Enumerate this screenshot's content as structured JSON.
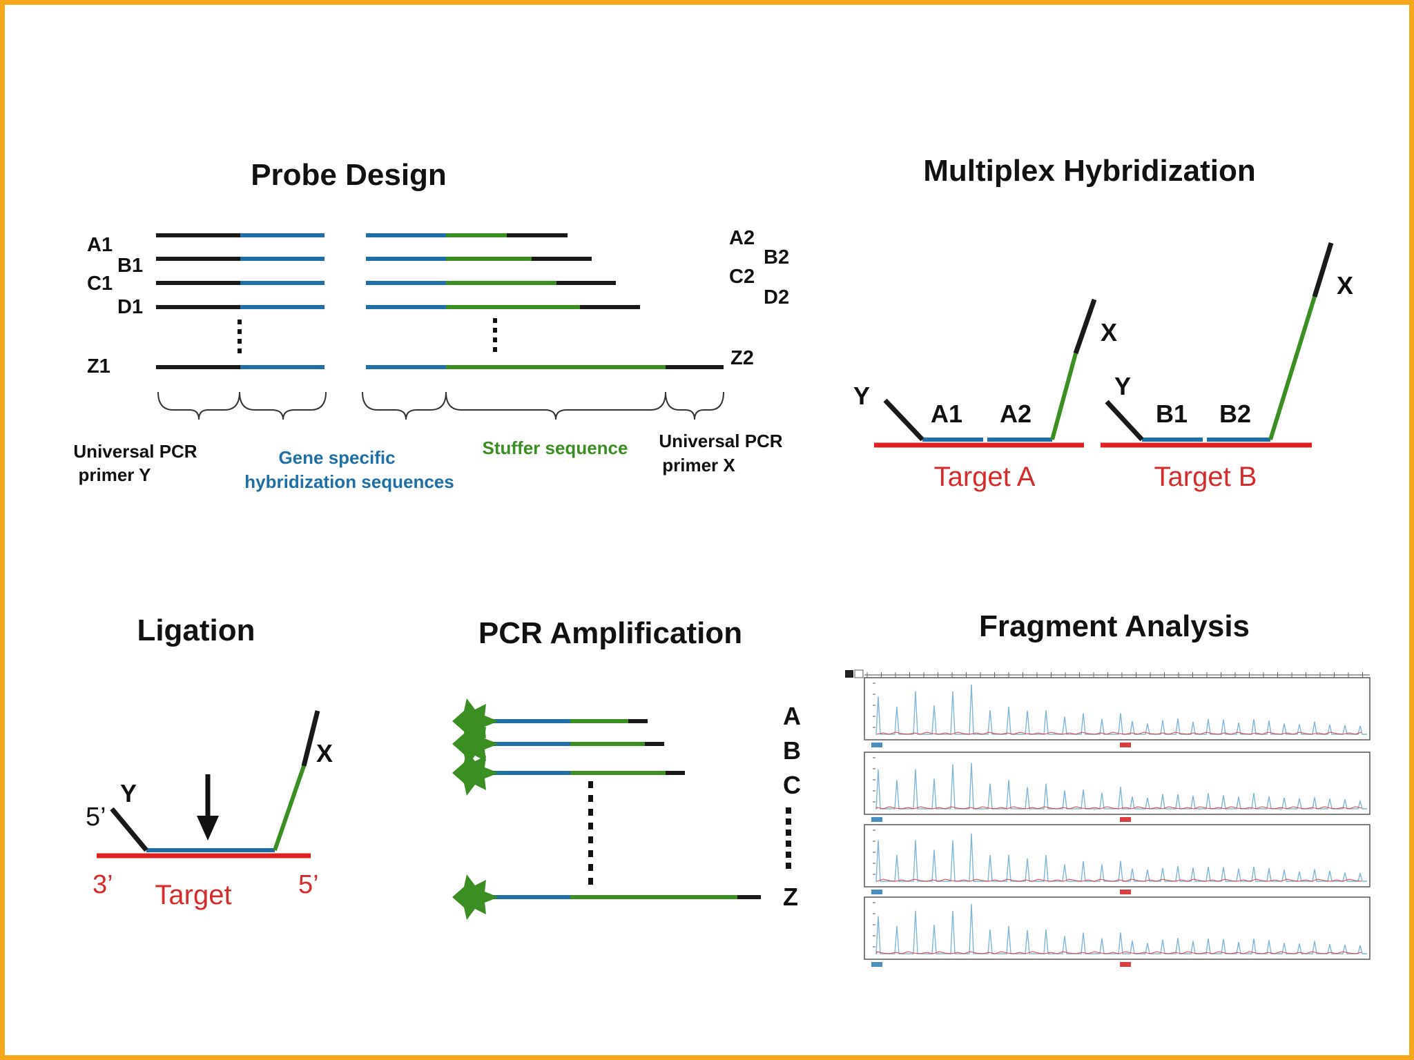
{
  "colors": {
    "frame": "#f5a81c",
    "black": "#1a1a1a",
    "blue": "#1d6fa5",
    "green": "#3b8f22",
    "red": "#e02020",
    "trace_blue": "#7fb6d6",
    "trace_red": "#d84040"
  },
  "probe_design": {
    "title": "Probe Design",
    "left_labels": [
      "A1",
      "B1",
      "C1",
      "D1",
      "Z1"
    ],
    "right_labels": [
      "A2",
      "B2",
      "C2",
      "D2",
      "Z2"
    ],
    "captions": {
      "primer_y": [
        "Universal PCR",
        "primer  Y"
      ],
      "gene_specific": [
        "Gene specific",
        "hybridization sequences"
      ],
      "stuffer": "Stuffer sequence",
      "primer_x": [
        "Universal PCR",
        "primer X"
      ]
    }
  },
  "multiplex": {
    "title": "Multiplex Hybridization",
    "labels": {
      "y": "Y",
      "x": "X",
      "a1": "A1",
      "a2": "A2",
      "b1": "B1",
      "b2": "B2"
    },
    "target_a": "Target A",
    "target_b": "Target B"
  },
  "ligation": {
    "title": "Ligation",
    "labels": {
      "y": "Y",
      "x": "X",
      "five_prime_left": "5’",
      "three_prime": "3’",
      "five_prime_right": "5’"
    },
    "target": "Target"
  },
  "pcr": {
    "title": "PCR Amplification",
    "labels": [
      "A",
      "B",
      "C",
      "Z"
    ]
  },
  "fragment": {
    "title": "Fragment Analysis"
  }
}
